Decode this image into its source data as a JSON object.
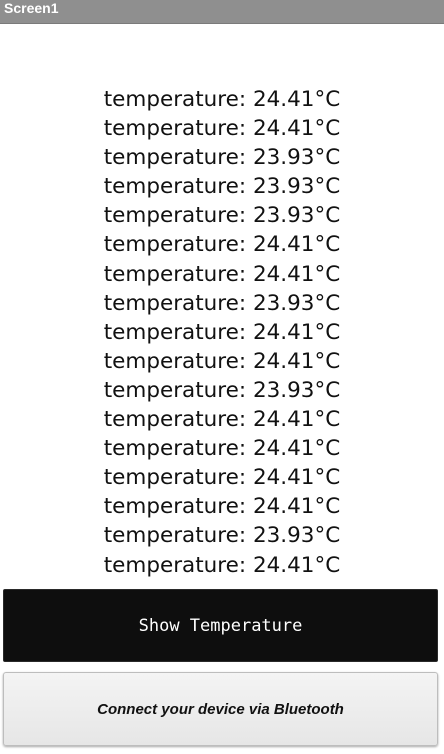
{
  "window": {
    "title": "Screen1"
  },
  "readings": [
    "temperature: 24.41°C",
    "temperature: 24.41°C",
    "temperature: 23.93°C",
    "temperature: 23.93°C",
    "temperature: 23.93°C",
    "temperature: 24.41°C",
    "temperature: 24.41°C",
    "temperature: 23.93°C",
    "temperature: 24.41°C",
    "temperature: 24.41°C",
    "temperature: 23.93°C",
    "temperature: 24.41°C",
    "temperature: 24.41°C",
    "temperature: 24.41°C",
    "temperature: 24.41°C",
    "temperature: 23.93°C",
    "temperature: 24.41°C"
  ],
  "buttons": {
    "show_temperature": "Show Temperature",
    "connect_bluetooth": "Connect your device via Bluetooth"
  },
  "colors": {
    "title_bar": "#8f8f8f",
    "show_button_bg": "#0e0e0e",
    "connect_button_bg": "#ececec"
  }
}
